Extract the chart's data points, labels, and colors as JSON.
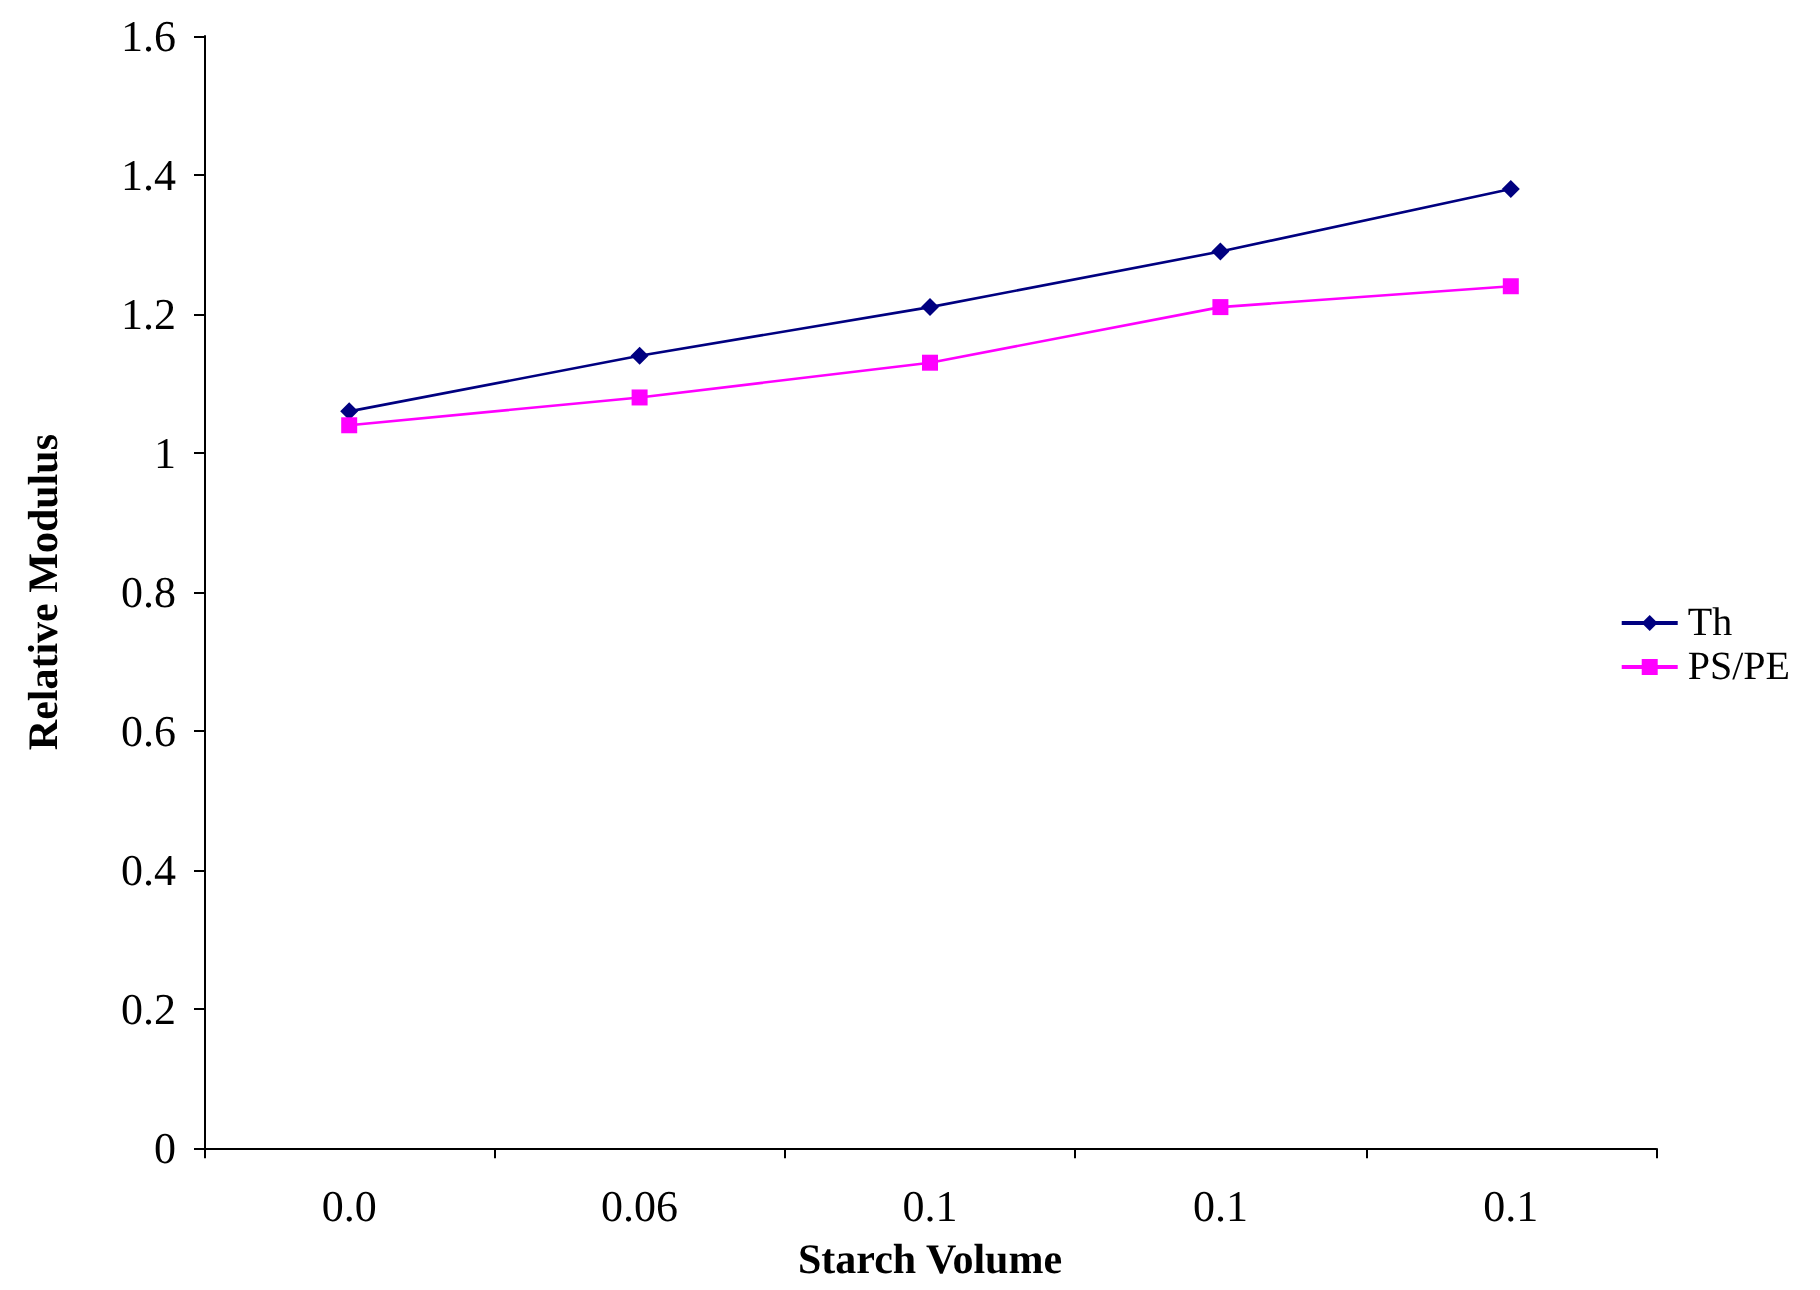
{
  "chart_data": {
    "type": "line",
    "xlabel": "Starch Volume",
    "ylabel": "Relative Modulus",
    "categories": [
      "0.0",
      "0.06",
      "0.1",
      "0.1",
      "0.1"
    ],
    "series": [
      {
        "name": "Th",
        "color": "#000080",
        "marker": "diamond",
        "values": [
          1.06,
          1.14,
          1.21,
          1.29,
          1.38
        ]
      },
      {
        "name": "PS/PE",
        "color": "#ff00ff",
        "marker": "square",
        "values": [
          1.04,
          1.08,
          1.13,
          1.21,
          1.24
        ]
      }
    ],
    "ylim": [
      0,
      1.6
    ],
    "yticks": [
      0,
      0.2,
      0.4,
      0.6,
      0.8,
      1,
      1.2,
      1.4,
      1.6
    ],
    "grid": false,
    "legend": "right",
    "line_style": "solid"
  }
}
